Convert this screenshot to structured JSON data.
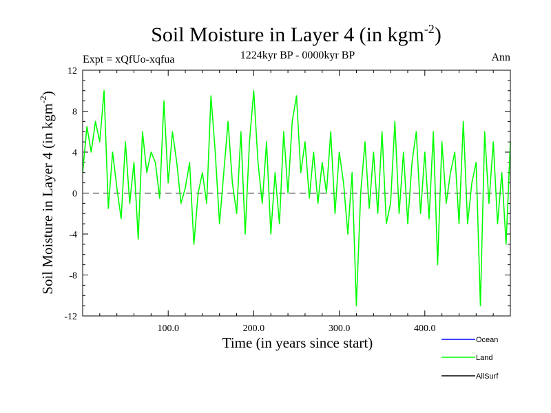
{
  "chart_data": {
    "type": "line",
    "title": "Soil Moisture in Layer 4 (in kgm",
    "title_sup": "-2",
    "title_close": ")",
    "subtitle": "1224kyr BP - 0000kyr BP",
    "expt_label": "Expt = xQfUo-xqfua",
    "season_label": "Ann",
    "xlabel": "Time (in years since start)",
    "ylabel": "Soil Moisture in Layer 4 (in kgm",
    "ylabel_sup": "-2",
    "ylabel_close": ")",
    "xlim": [
      0,
      500
    ],
    "ylim": [
      -12,
      12
    ],
    "xticks": [
      100,
      200,
      300,
      400
    ],
    "xtick_labels": [
      "100.0",
      "200.0",
      "300.0",
      "400.0"
    ],
    "yticks": [
      -12,
      -8,
      -4,
      0,
      4,
      8,
      12
    ],
    "ytick_labels": [
      "-12",
      "-8",
      "-4",
      "0",
      "4",
      "8",
      "12"
    ],
    "reference_line": 0,
    "legend": [
      {
        "name": "Ocean",
        "color": "#0000ff"
      },
      {
        "name": "Land",
        "color": "#00ff00"
      },
      {
        "name": "AllSurf",
        "color": "#000000"
      }
    ],
    "series": [
      {
        "name": "Land",
        "color": "#00ff00",
        "x": [
          0,
          5,
          10,
          15,
          20,
          25,
          30,
          35,
          40,
          45,
          50,
          55,
          60,
          65,
          70,
          75,
          80,
          85,
          90,
          95,
          100,
          105,
          110,
          115,
          120,
          125,
          130,
          135,
          140,
          145,
          150,
          155,
          160,
          165,
          170,
          175,
          180,
          185,
          190,
          195,
          200,
          205,
          210,
          215,
          220,
          225,
          230,
          235,
          240,
          245,
          250,
          255,
          260,
          265,
          270,
          275,
          280,
          285,
          290,
          295,
          300,
          305,
          310,
          315,
          320,
          325,
          330,
          335,
          340,
          345,
          350,
          355,
          360,
          365,
          370,
          375,
          380,
          385,
          390,
          395,
          400,
          405,
          410,
          415,
          420,
          425,
          430,
          435,
          440,
          445,
          450,
          455,
          460,
          465,
          470,
          475,
          480,
          485,
          490,
          495,
          500
        ],
        "values": [
          2,
          6.5,
          4,
          7,
          5,
          10,
          -1.5,
          4,
          0.5,
          -2.5,
          5,
          -1,
          3,
          -4.5,
          6,
          2,
          4,
          3,
          -0.5,
          9,
          1,
          6,
          3,
          -1,
          0.5,
          3,
          -5,
          0,
          2,
          -1,
          9.5,
          4,
          -3,
          2,
          7,
          1,
          -2,
          6,
          -4,
          5,
          10,
          3,
          -1,
          5,
          -4,
          2,
          -3,
          6,
          0,
          7,
          9.5,
          2,
          5,
          -0.5,
          4,
          -1,
          3,
          0,
          6,
          -2,
          4,
          1,
          -4,
          2,
          -11,
          0,
          5,
          -1.5,
          4,
          -2,
          6,
          -3,
          -1,
          7,
          -2,
          4,
          -3,
          3,
          6,
          -2,
          4,
          -2.5,
          6,
          -7,
          5,
          -1,
          2,
          4,
          -3,
          7,
          -3,
          1,
          3,
          -11,
          6,
          -1,
          5,
          -3,
          2,
          -5,
          5
        ]
      }
    ]
  }
}
